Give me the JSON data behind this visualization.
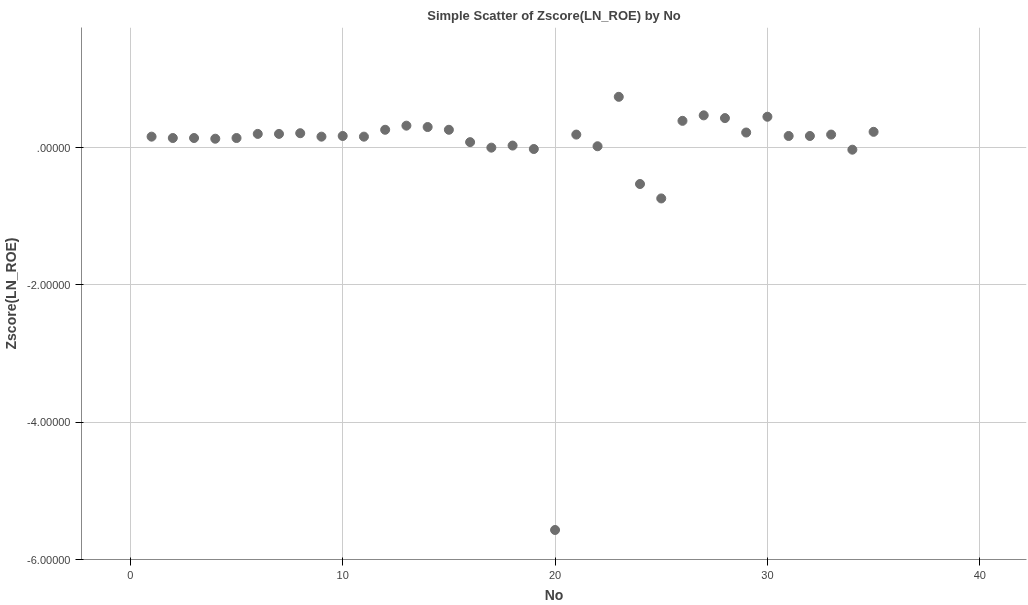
{
  "chart_data": {
    "type": "scatter",
    "title": "Simple Scatter of Zscore(LN_ROE) by No",
    "xlabel": "No",
    "ylabel": "Zscore(LN_ROE)",
    "x": [
      1,
      2,
      3,
      4,
      5,
      6,
      7,
      8,
      9,
      10,
      11,
      12,
      13,
      14,
      15,
      16,
      17,
      18,
      19,
      20,
      21,
      22,
      23,
      24,
      25,
      26,
      27,
      28,
      29,
      30,
      31,
      32,
      33,
      34,
      35
    ],
    "series": [
      {
        "color": "#6e6e6e",
        "values": [
          0.16,
          0.14,
          0.14,
          0.13,
          0.14,
          0.2,
          0.2,
          0.21,
          0.16,
          0.17,
          0.16,
          0.26,
          0.32,
          0.3,
          0.26,
          0.08,
          0.0,
          0.03,
          -0.02,
          -5.57,
          0.19,
          0.02,
          0.74,
          -0.53,
          -0.74,
          0.39,
          0.47,
          0.43,
          0.22,
          0.45,
          0.17,
          0.17,
          0.19,
          -0.03,
          0.23
        ]
      }
    ],
    "xlim": [
      -2.3,
      42.2
    ],
    "ylim": [
      -6.0,
      1.75
    ],
    "xticks": [
      0,
      10,
      20,
      30,
      40
    ],
    "yticks": [
      {
        "value": -6,
        "label": "-6.00000"
      },
      {
        "value": -4,
        "label": "-4.00000"
      },
      {
        "value": -2,
        "label": "-2.00000"
      },
      {
        "value": 0,
        "label": ".00000"
      }
    ],
    "grid": true,
    "marker": "circle"
  }
}
